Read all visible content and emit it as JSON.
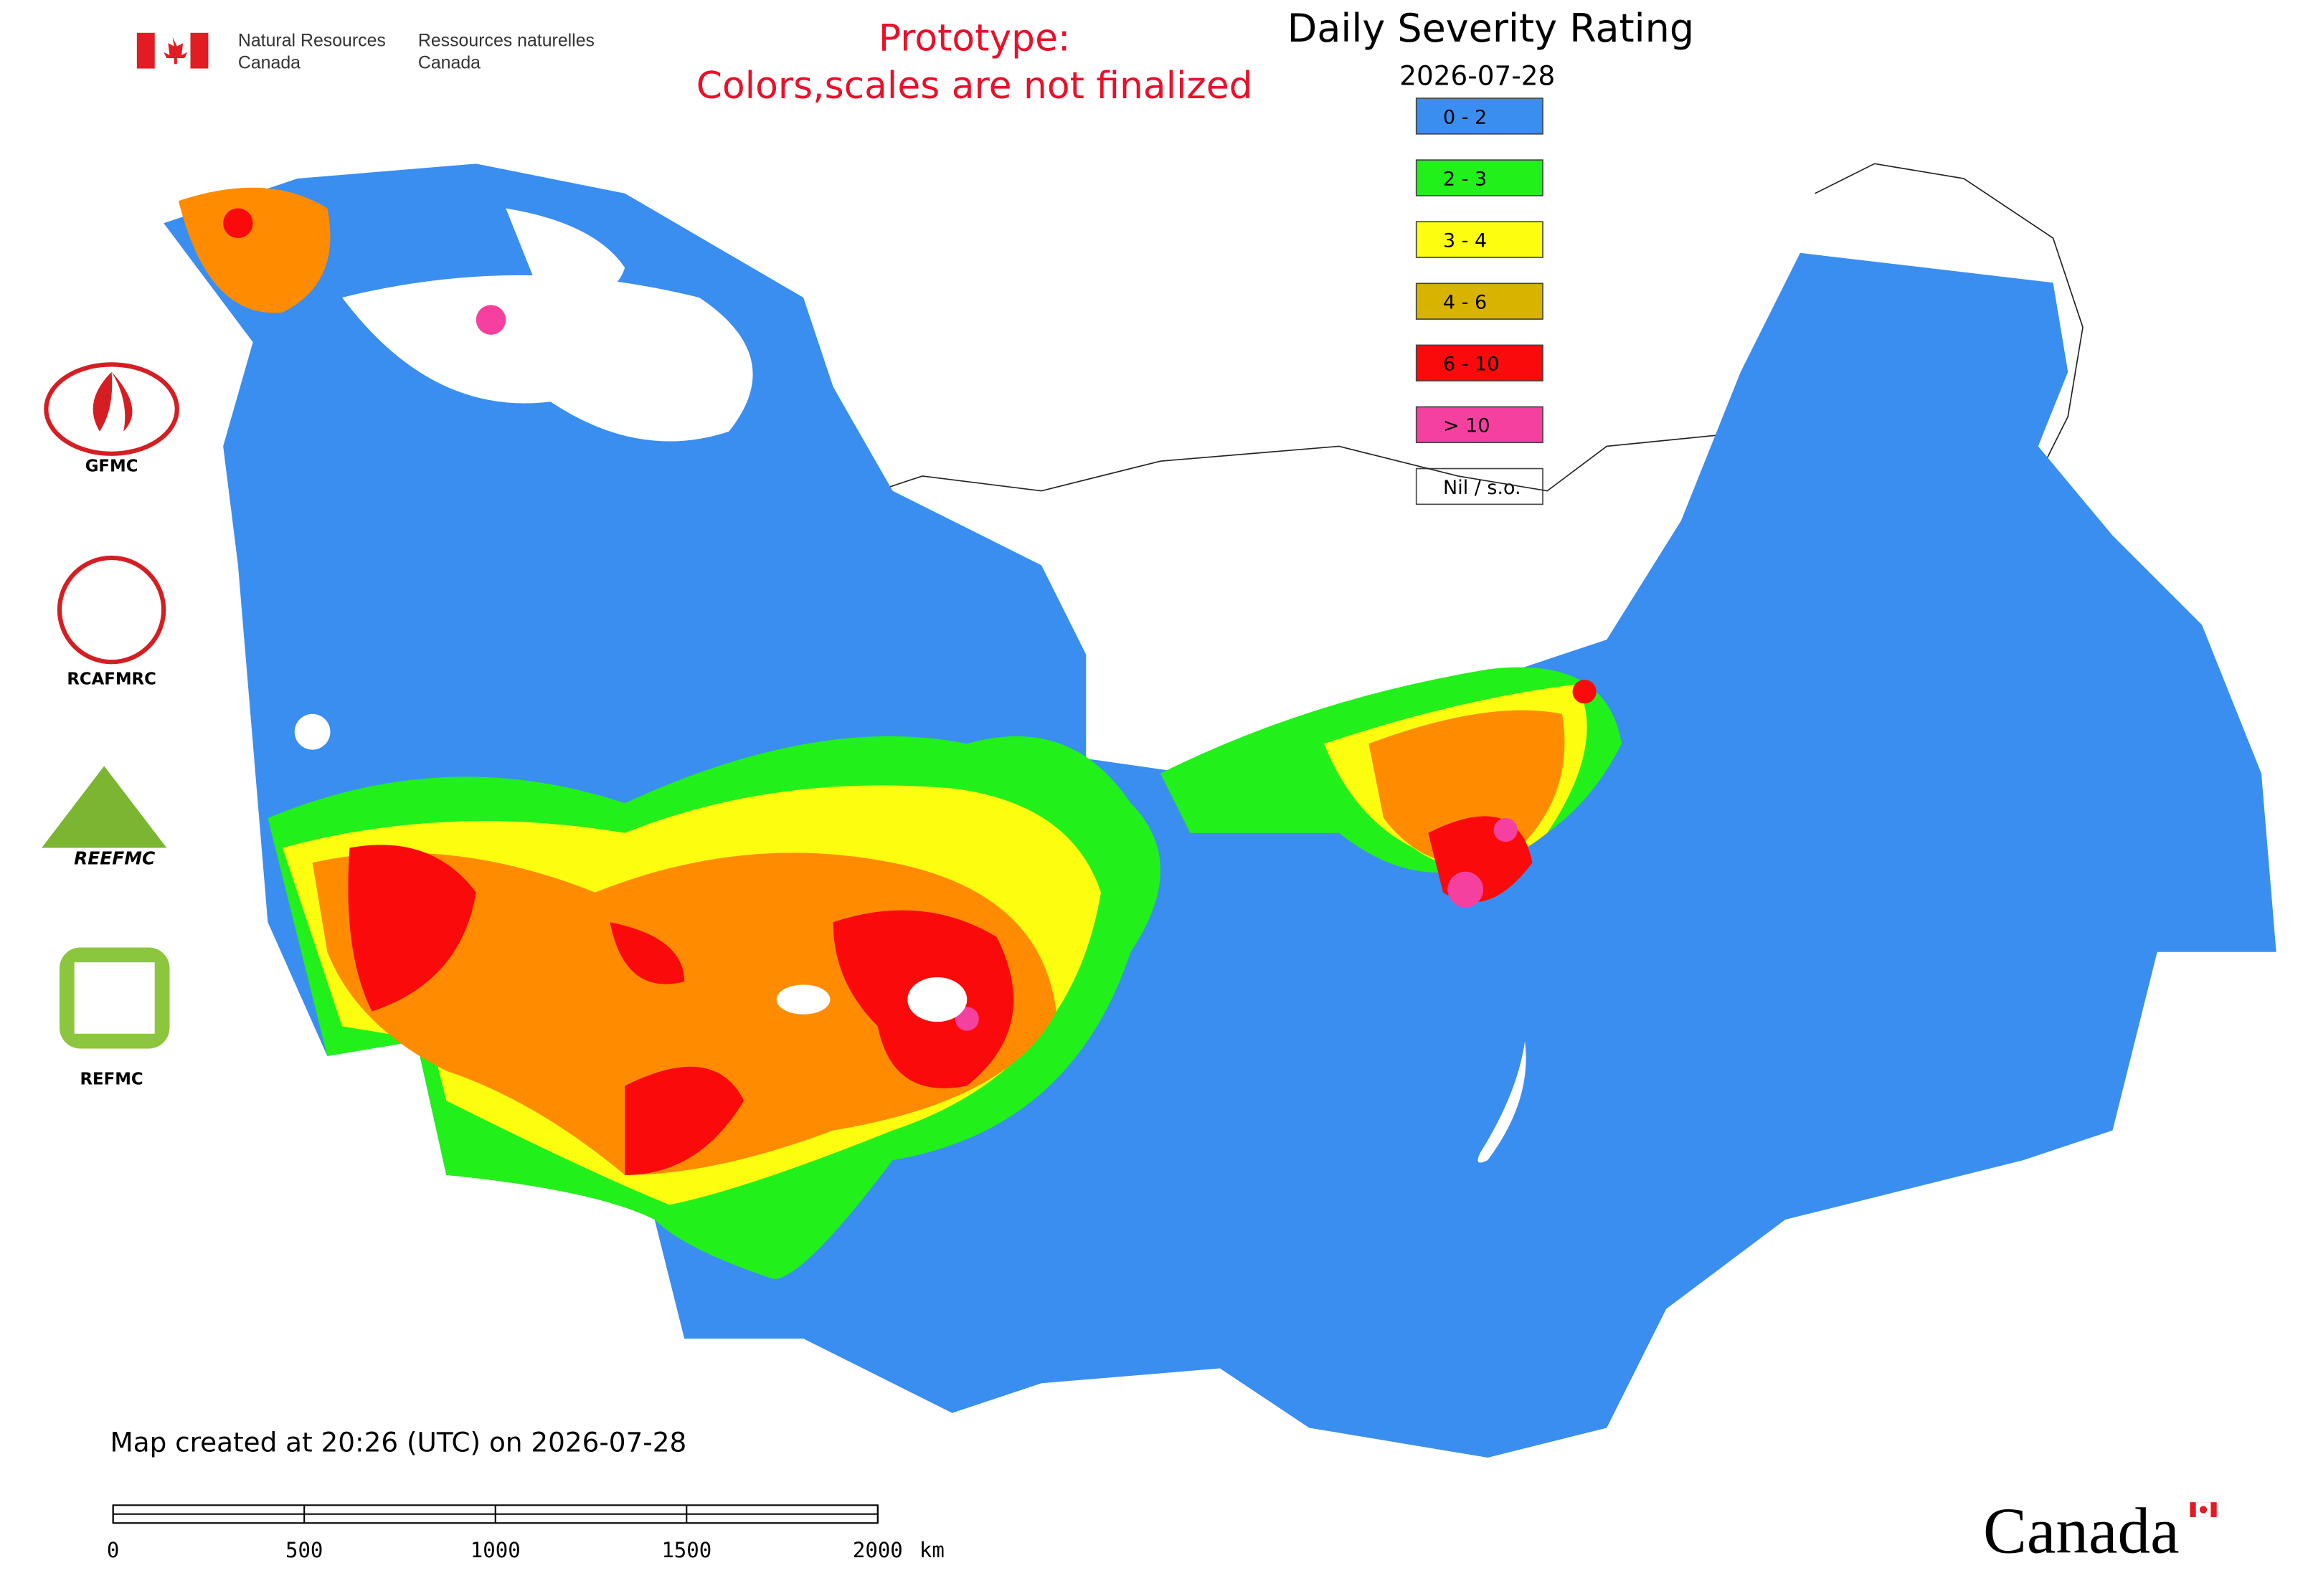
{
  "header": {
    "agency_en": [
      "Natural Resources",
      "Canada"
    ],
    "agency_fr": [
      "Ressources naturelles",
      "Canada"
    ]
  },
  "notice": [
    "Prototype:",
    "Colors,scales are not finalized"
  ],
  "title": "Daily Severity Rating",
  "date": "2026-07-28",
  "legend": [
    {
      "label": "0 - 2",
      "color": "#3a8ef0"
    },
    {
      "label": "2 - 3",
      "color": "#22f01a"
    },
    {
      "label": "3 - 4",
      "color": "#fdfd10"
    },
    {
      "label": "4 - 6",
      "color": "#d8b400"
    },
    {
      "label": "6 - 10",
      "color": "#fa0a0a"
    },
    {
      "label": "> 10",
      "color": "#f540a0"
    },
    {
      "label": "Nil / s.o.",
      "color": "#ffffff"
    }
  ],
  "logos": [
    "GFMC",
    "RCAFMRC",
    "REEFMC",
    "REFMC"
  ],
  "footer": "Map created at 20:26 (UTC) on 2026-07-28",
  "scale_bar": {
    "ticks": [
      0,
      500,
      1000,
      1500,
      2000
    ],
    "unit": "km"
  },
  "wordmark": "Canada"
}
